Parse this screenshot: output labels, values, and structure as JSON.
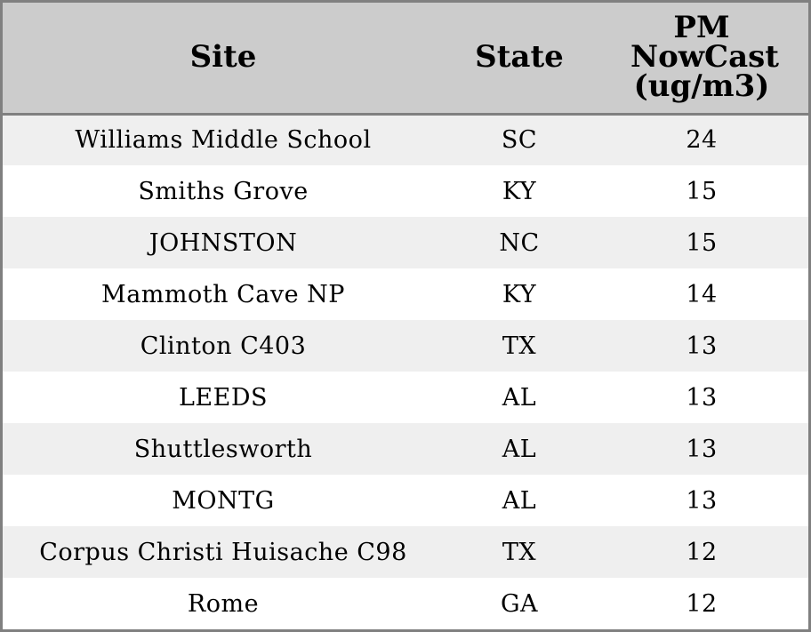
{
  "chart_data": {
    "type": "table",
    "columns": [
      "Site",
      "State",
      "PM NowCast (ug/m3)"
    ],
    "rows": [
      [
        "Williams Middle School",
        "SC",
        "24"
      ],
      [
        "Smiths Grove",
        "KY",
        "15"
      ],
      [
        "JOHNSTON",
        "NC",
        "15"
      ],
      [
        "Mammoth Cave NP",
        "KY",
        "14"
      ],
      [
        "Clinton C403",
        "TX",
        "13"
      ],
      [
        "LEEDS",
        "AL",
        "13"
      ],
      [
        "Shuttlesworth",
        "AL",
        "13"
      ],
      [
        "MONTG",
        "AL",
        "13"
      ],
      [
        "Corpus Christi Huisache C98",
        "TX",
        "12"
      ],
      [
        "Rome",
        "GA",
        "12"
      ]
    ]
  },
  "colors": {
    "header_bg": "#cccccc",
    "stripe_bg": "#efefef",
    "border": "#808080"
  }
}
